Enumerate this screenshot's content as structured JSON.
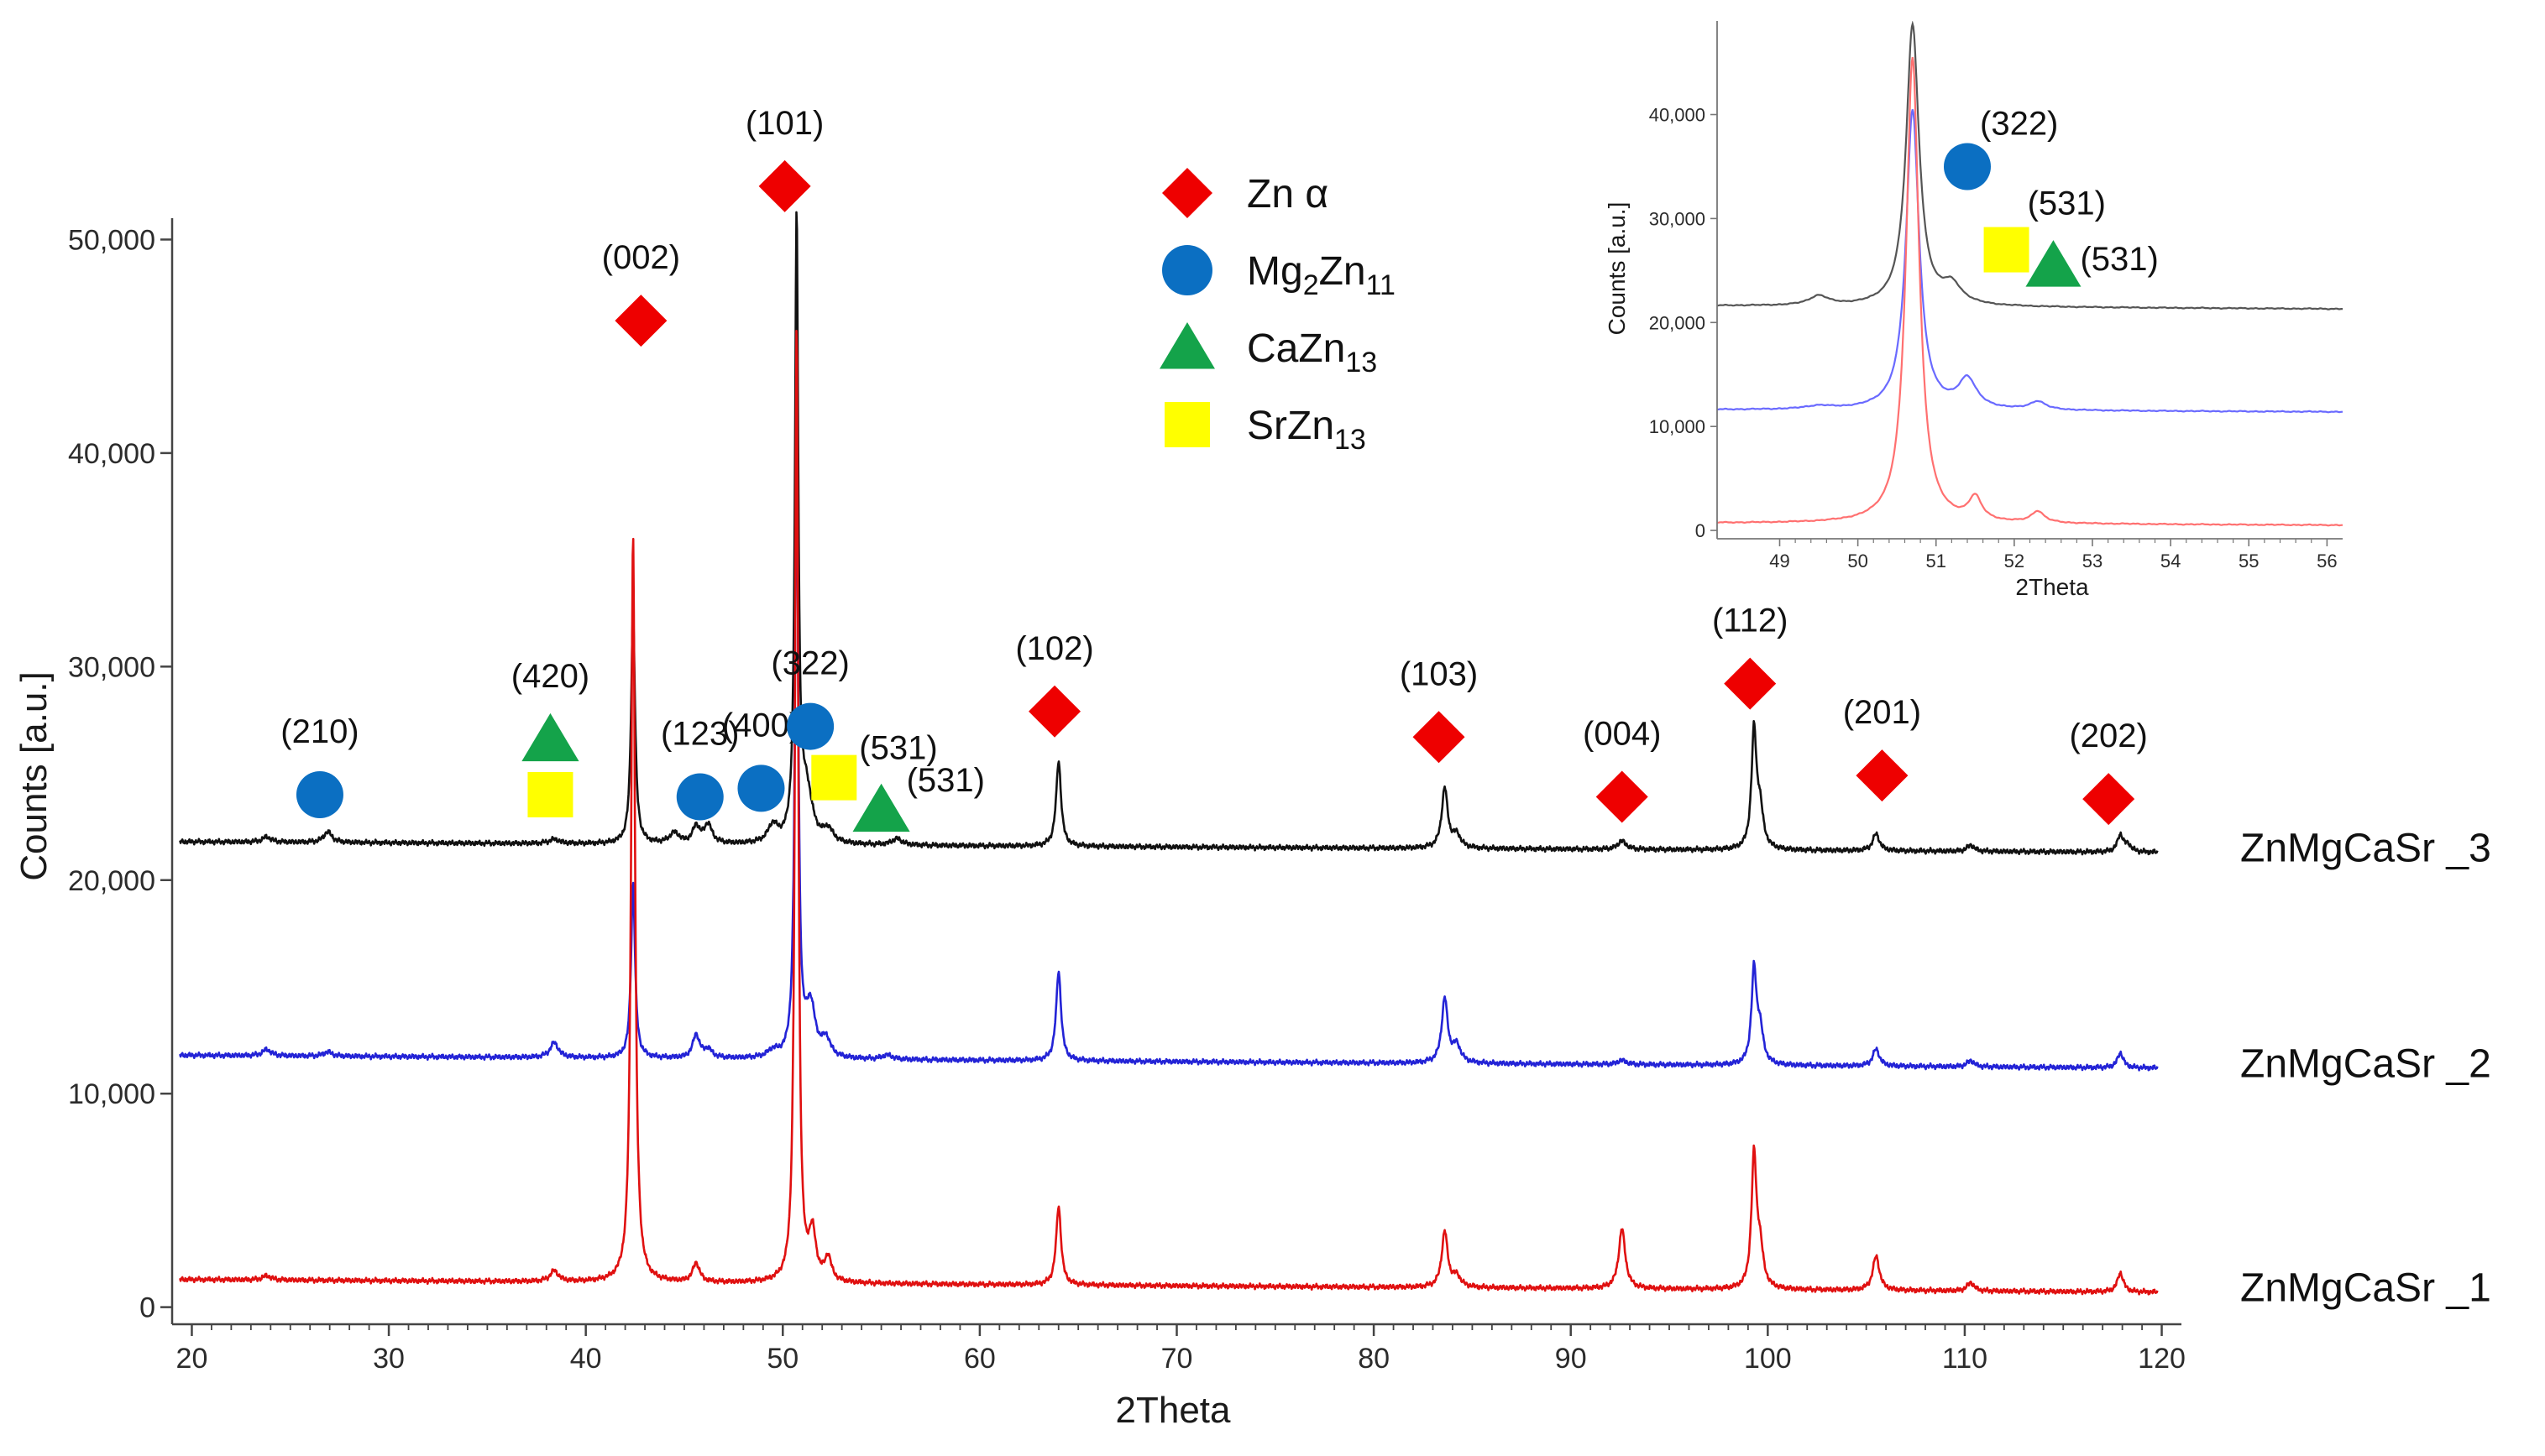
{
  "chart_data": {
    "type": "line",
    "xlabel": "2Theta",
    "ylabel": "Counts [a.u.]",
    "xlim": [
      19,
      121
    ],
    "ylim": [
      -800,
      51000
    ],
    "x_ticks": [
      "20",
      "30",
      "40",
      "50",
      "60",
      "70",
      "80",
      "90",
      "100",
      "110",
      "120"
    ],
    "y_ticks": [
      "0",
      "10,000",
      "20,000",
      "30,000",
      "40,000",
      "50,000"
    ],
    "series": [
      {
        "name": "ZnMgCaSr _3",
        "color": "#111111",
        "baseline": 21800,
        "end": 21300,
        "peaks": [
          [
            23.8,
            250,
            0.25
          ],
          [
            26.9,
            500,
            0.25
          ],
          [
            38.4,
            200,
            0.3
          ],
          [
            42.4,
            10900,
            0.12
          ],
          [
            44.5,
            500,
            0.3
          ],
          [
            45.6,
            800,
            0.2
          ],
          [
            46.2,
            900,
            0.25
          ],
          [
            49.5,
            800,
            0.3
          ],
          [
            50.7,
            29000,
            0.1
          ],
          [
            51.2,
            2400,
            0.35
          ],
          [
            52.3,
            600,
            0.3
          ],
          [
            55.8,
            300,
            0.3
          ],
          [
            64.0,
            4000,
            0.15
          ],
          [
            83.6,
            2800,
            0.18
          ],
          [
            84.2,
            600,
            0.25
          ],
          [
            92.6,
            400,
            0.25
          ],
          [
            99.3,
            5400,
            0.15
          ],
          [
            99.6,
            1800,
            0.2
          ],
          [
            105.5,
            800,
            0.2
          ],
          [
            110.3,
            300,
            0.2
          ],
          [
            117.9,
            800,
            0.18
          ],
          [
            118.3,
            300,
            0.2
          ]
        ]
      },
      {
        "name": "ZnMgCaSr _2",
        "color": "#2323d6",
        "baseline": 11800,
        "end": 11200,
        "peaks": [
          [
            23.8,
            300,
            0.25
          ],
          [
            26.9,
            200,
            0.25
          ],
          [
            38.4,
            700,
            0.25
          ],
          [
            42.4,
            8200,
            0.12
          ],
          [
            45.6,
            1100,
            0.2
          ],
          [
            46.2,
            400,
            0.25
          ],
          [
            49.5,
            300,
            0.3
          ],
          [
            50.7,
            28800,
            0.1
          ],
          [
            51.4,
            2400,
            0.3
          ],
          [
            52.2,
            800,
            0.25
          ],
          [
            55.3,
            200,
            0.3
          ],
          [
            64.0,
            4200,
            0.15
          ],
          [
            83.6,
            3000,
            0.18
          ],
          [
            84.2,
            800,
            0.25
          ],
          [
            92.6,
            200,
            0.25
          ],
          [
            99.3,
            4300,
            0.15
          ],
          [
            99.6,
            1600,
            0.2
          ],
          [
            105.5,
            800,
            0.2
          ],
          [
            110.3,
            300,
            0.2
          ],
          [
            117.9,
            700,
            0.18
          ]
        ]
      },
      {
        "name": "ZnMgCaSr _1",
        "color": "#e01010",
        "baseline": 1300,
        "end": 700,
        "peaks": [
          [
            23.8,
            200,
            0.25
          ],
          [
            38.4,
            500,
            0.25
          ],
          [
            42.4,
            35000,
            0.12
          ],
          [
            45.6,
            900,
            0.2
          ],
          [
            50.7,
            44800,
            0.1
          ],
          [
            51.5,
            2200,
            0.22
          ],
          [
            52.3,
            1100,
            0.2
          ],
          [
            64.0,
            3700,
            0.15
          ],
          [
            83.6,
            2600,
            0.18
          ],
          [
            84.2,
            500,
            0.25
          ],
          [
            92.6,
            2800,
            0.2
          ],
          [
            99.3,
            6100,
            0.15
          ],
          [
            99.6,
            1800,
            0.2
          ],
          [
            105.5,
            1600,
            0.2
          ],
          [
            110.3,
            400,
            0.2
          ],
          [
            117.9,
            900,
            0.18
          ]
        ]
      }
    ],
    "annotations": [
      {
        "label": "(210)",
        "marker": "circle",
        "color": "#0b6fc2",
        "x": 26.5,
        "y": 24000
      },
      {
        "label": "(420)",
        "marker": "triangle",
        "color": "#14a34a",
        "x": 38.2,
        "y": 26600
      },
      {
        "label": "",
        "marker": "square",
        "color": "#ffff00",
        "x": 38.2,
        "y": 24000
      },
      {
        "label": "(002)",
        "marker": "diamond",
        "color": "#ee0000",
        "x": 42.8,
        "y": 46200
      },
      {
        "label": "(123)",
        "marker": "circle",
        "color": "#0b6fc2",
        "x": 45.8,
        "y": 23900
      },
      {
        "label": "(400)",
        "marker": "circle",
        "color": "#0b6fc2",
        "x": 48.9,
        "y": 24300
      },
      {
        "label": "(101)",
        "marker": "diamond",
        "color": "#ee0000",
        "x": 50.1,
        "y": 52500
      },
      {
        "label": "(322)",
        "marker": "circle",
        "color": "#0b6fc2",
        "x": 51.4,
        "y": 27200
      },
      {
        "label": "(531)",
        "marker": "square",
        "color": "#ffff00",
        "x": 52.6,
        "y": 24800
      },
      {
        "label": "(531)",
        "marker": "triangle",
        "color": "#14a34a",
        "x": 55.0,
        "y": 23300
      },
      {
        "label": "(102)",
        "marker": "diamond",
        "color": "#ee0000",
        "x": 63.8,
        "y": 27900
      },
      {
        "label": "(103)",
        "marker": "diamond",
        "color": "#ee0000",
        "x": 83.3,
        "y": 26700
      },
      {
        "label": "(004)",
        "marker": "diamond",
        "color": "#ee0000",
        "x": 92.6,
        "y": 23900
      },
      {
        "label": "(112)",
        "marker": "diamond",
        "color": "#ee0000",
        "x": 99.1,
        "y": 29200
      },
      {
        "label": "(201)",
        "marker": "diamond",
        "color": "#ee0000",
        "x": 105.8,
        "y": 24900
      },
      {
        "label": "(202)",
        "marker": "diamond",
        "color": "#ee0000",
        "x": 117.3,
        "y": 23800
      }
    ],
    "legend": {
      "position": "top-center",
      "entries": [
        {
          "marker": "diamond",
          "color": "#ee0000",
          "text": "Zn α"
        },
        {
          "marker": "circle",
          "color": "#0b6fc2",
          "base": "Mg",
          "sub1": "2",
          "mid": "Zn",
          "sub2": "11"
        },
        {
          "marker": "triangle",
          "color": "#14a34a",
          "base": "",
          "sub1": "",
          "mid": "CaZn",
          "sub2": "13"
        },
        {
          "marker": "square",
          "color": "#ffff00",
          "base": "",
          "sub1": "",
          "mid": "SrZn",
          "sub2": "13"
        }
      ]
    },
    "inset": {
      "position": "top-right",
      "xlabel": "2Theta",
      "ylabel": "Counts [a.u.]",
      "xlim": [
        48.2,
        56.2
      ],
      "ylim": [
        -800,
        49000
      ],
      "x_ticks": [
        "49",
        "50",
        "51",
        "52",
        "53",
        "54",
        "55",
        "56"
      ],
      "y_ticks": [
        "0",
        "10,000",
        "20,000",
        "30,000",
        "40,000"
      ],
      "series": [
        {
          "name": "ZnMgCaSr _3",
          "color": "#555555",
          "baseline": 21600,
          "end": 21300,
          "peaks": [
            [
              49.5,
              900,
              0.15
            ],
            [
              50.7,
              27000,
              0.1
            ],
            [
              51.2,
              1800,
              0.15
            ]
          ]
        },
        {
          "name": "ZnMgCaSr _2",
          "color": "#6a6aff",
          "baseline": 11600,
          "end": 11400,
          "peaks": [
            [
              49.5,
              300,
              0.2
            ],
            [
              50.7,
              28800,
              0.1
            ],
            [
              51.4,
              2800,
              0.14
            ],
            [
              52.3,
              800,
              0.12
            ]
          ]
        },
        {
          "name": "ZnMgCaSr _1",
          "color": "#ff7070",
          "baseline": 700,
          "end": 500,
          "peaks": [
            [
              50.7,
              44800,
              0.1
            ],
            [
              51.5,
              2200,
              0.1
            ],
            [
              52.3,
              1100,
              0.1
            ]
          ]
        }
      ],
      "annotations": [
        {
          "label": "(322)",
          "marker": "circle",
          "color": "#0b6fc2",
          "x": 51.4,
          "y": 35000
        },
        {
          "label": "(531)",
          "marker": "square",
          "color": "#ffff00",
          "x": 51.9,
          "y": 27000
        },
        {
          "label": "(531)",
          "marker": "triangle",
          "color": "#14a34a",
          "x": 52.5,
          "y": 25500
        }
      ]
    }
  }
}
